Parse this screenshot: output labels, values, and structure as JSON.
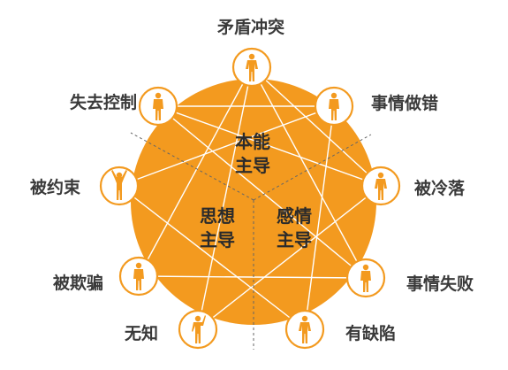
{
  "colors": {
    "accent": "#f39a1f",
    "node_fill": "#ffffff",
    "text": "#3a3a3a"
  },
  "center_zones": {
    "instinct": [
      "本能",
      "主导"
    ],
    "thinking": [
      "思想",
      "主导"
    ],
    "feeling": [
      "感情",
      "主导"
    ]
  },
  "nodes": [
    {
      "id": "n1",
      "label": "矛盾冲突",
      "icon": "person-icon"
    },
    {
      "id": "n2",
      "label": "事情做错",
      "icon": "person-icon"
    },
    {
      "id": "n3",
      "label": "被冷落",
      "icon": "person-icon"
    },
    {
      "id": "n4",
      "label": "事情失败",
      "icon": "person-icon"
    },
    {
      "id": "n5",
      "label": "有缺陷",
      "icon": "person-icon"
    },
    {
      "id": "n6",
      "label": "无知",
      "icon": "person-icon"
    },
    {
      "id": "n7",
      "label": "被欺骗",
      "icon": "person-icon"
    },
    {
      "id": "n8",
      "label": "被约束",
      "icon": "person-icon"
    },
    {
      "id": "n9",
      "label": "失去控制",
      "icon": "person-icon"
    }
  ],
  "connections": [
    [
      "n1",
      "n4"
    ],
    [
      "n1",
      "n6"
    ],
    [
      "n1",
      "n3"
    ],
    [
      "n1",
      "n7"
    ],
    [
      "n2",
      "n5"
    ],
    [
      "n2",
      "n8"
    ],
    [
      "n3",
      "n6"
    ],
    [
      "n3",
      "n9"
    ],
    [
      "n4",
      "n7"
    ],
    [
      "n4",
      "n9"
    ],
    [
      "n5",
      "n8"
    ],
    [
      "n2",
      "n9"
    ]
  ]
}
